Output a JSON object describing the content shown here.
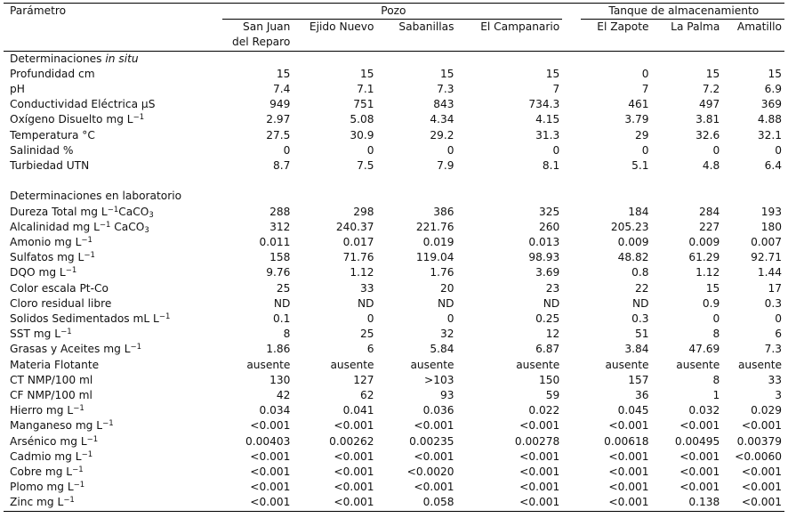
{
  "header": {
    "param_label": "Parámetro",
    "group_pozo": "Pozo",
    "group_tanque": "Tanque de almacenamiento",
    "pozo_sites": [
      "San Juan",
      "Ejido Nuevo",
      "Sabanillas",
      "El Campanario"
    ],
    "pozo_site_line2": "del Reparo",
    "tanque_sites": [
      "El Zapote",
      "La Palma",
      "Amatillo"
    ]
  },
  "sections": {
    "insitu_prefix": "Determinaciones ",
    "insitu_italic": "in situ",
    "lab": "Determinaciones en laboratorio"
  },
  "units": {
    "inv_liter": "−1",
    "caco3_sub": "3"
  },
  "insitu": [
    {
      "name": "Profundidad cm",
      "values": [
        "15",
        "15",
        "15",
        "15",
        "0",
        "15",
        "15"
      ]
    },
    {
      "name": "pH",
      "values": [
        "7.4",
        "7.1",
        "7.3",
        "7",
        "7",
        "7.2",
        "6.9"
      ]
    },
    {
      "name": "Conductividad Eléctrica μS",
      "values": [
        "949",
        "751",
        "843",
        "734.3",
        "461",
        "497",
        "369"
      ]
    },
    {
      "name": "Oxígeno Disuelto mg L",
      "values": [
        "2.97",
        "5.08",
        "4.34",
        "4.15",
        "3.79",
        "3.81",
        "4.88"
      ]
    },
    {
      "name": "Temperatura °C",
      "values": [
        "27.5",
        "30.9",
        "29.2",
        "31.3",
        "29",
        "32.6",
        "32.1"
      ]
    },
    {
      "name": "Salinidad %",
      "values": [
        "0",
        "0",
        "0",
        "0",
        "0",
        "0",
        "0"
      ]
    },
    {
      "name": "Turbiedad UTN",
      "values": [
        "8.7",
        "7.5",
        "7.9",
        "8.1",
        "5.1",
        "4.8",
        "6.4"
      ]
    }
  ],
  "lab": [
    {
      "name": "Dureza Total mg L",
      "suffix": "CaCO",
      "values": [
        "288",
        "298",
        "386",
        "325",
        "184",
        "284",
        "193"
      ]
    },
    {
      "name": "Alcalinidad mg L",
      "suffix": " CaCO",
      "values": [
        "312",
        "240.37",
        "221.76",
        "260",
        "205.23",
        "227",
        "180"
      ]
    },
    {
      "name": "Amonio mg L",
      "values": [
        "0.011",
        "0.017",
        "0.019",
        "0.013",
        "0.009",
        "0.009",
        "0.007"
      ]
    },
    {
      "name": "Sulfatos mg L",
      "values": [
        "158",
        "71.76",
        "119.04",
        "98.93",
        "48.82",
        "61.29",
        "92.71"
      ]
    },
    {
      "name": "DQO mg L",
      "values": [
        "9.76",
        "1.12",
        "1.76",
        "3.69",
        "0.8",
        "1.12",
        "1.44"
      ]
    },
    {
      "name": "Color escala Pt-Co",
      "values": [
        "25",
        "33",
        "20",
        "23",
        "22",
        "15",
        "17"
      ]
    },
    {
      "name": "Cloro residual libre",
      "values": [
        "ND",
        "ND",
        "ND",
        "ND",
        "ND",
        "0.9",
        "0.3"
      ]
    },
    {
      "name": "Solidos Sedimentados mL L",
      "values": [
        "0.1",
        "0",
        "0",
        "0.25",
        "0.3",
        "0",
        "0"
      ]
    },
    {
      "name": "SST mg L",
      "values": [
        "8",
        "25",
        "32",
        "12",
        "51",
        "8",
        "6"
      ]
    },
    {
      "name": "Grasas y Aceites mg L",
      "values": [
        "1.86",
        "6",
        "5.84",
        "6.87",
        "3.84",
        "47.69",
        "7.3"
      ]
    },
    {
      "name": "Materia Flotante",
      "values": [
        "ausente",
        "ausente",
        "ausente",
        "ausente",
        "ausente",
        "ausente",
        "ausente"
      ]
    },
    {
      "name": "CT NMP/100 ml",
      "values": [
        "130",
        "127",
        ">103",
        "150",
        "157",
        "8",
        "33"
      ]
    },
    {
      "name": "CF NMP/100 ml",
      "values": [
        "42",
        "62",
        "93",
        "59",
        "36",
        "1",
        "3"
      ]
    },
    {
      "name": "Hierro mg L",
      "values": [
        "0.034",
        "0.041",
        "0.036",
        "0.022",
        "0.045",
        "0.032",
        "0.029"
      ]
    },
    {
      "name": "Manganeso mg L",
      "values": [
        "<0.001",
        "<0.001",
        "<0.001",
        "<0.001",
        "<0.001",
        "<0.001",
        "<0.001"
      ]
    },
    {
      "name": "Arsénico mg L",
      "values": [
        "0.00403",
        "0.00262",
        "0.00235",
        "0.00278",
        "0.00618",
        "0.00495",
        "0.00379"
      ]
    },
    {
      "name": "Cadmio mg L",
      "values": [
        "<0.001",
        "<0.001",
        "<0.001",
        "<0.001",
        "<0.001",
        "<0.001",
        "<0.0060"
      ]
    },
    {
      "name": "Cobre mg L",
      "values": [
        "<0.001",
        "<0.001",
        "<0.0020",
        "<0.001",
        "<0.001",
        "<0.001",
        "<0.001"
      ]
    },
    {
      "name": "Plomo mg L",
      "values": [
        "<0.001",
        "<0.001",
        "<0.001",
        "<0.001",
        "<0.001",
        "<0.001",
        "<0.001"
      ]
    },
    {
      "name": "Zinc mg L",
      "values": [
        "<0.001",
        "<0.001",
        "0.058",
        "<0.001",
        "<0.001",
        "0.138",
        "<0.001"
      ]
    }
  ]
}
